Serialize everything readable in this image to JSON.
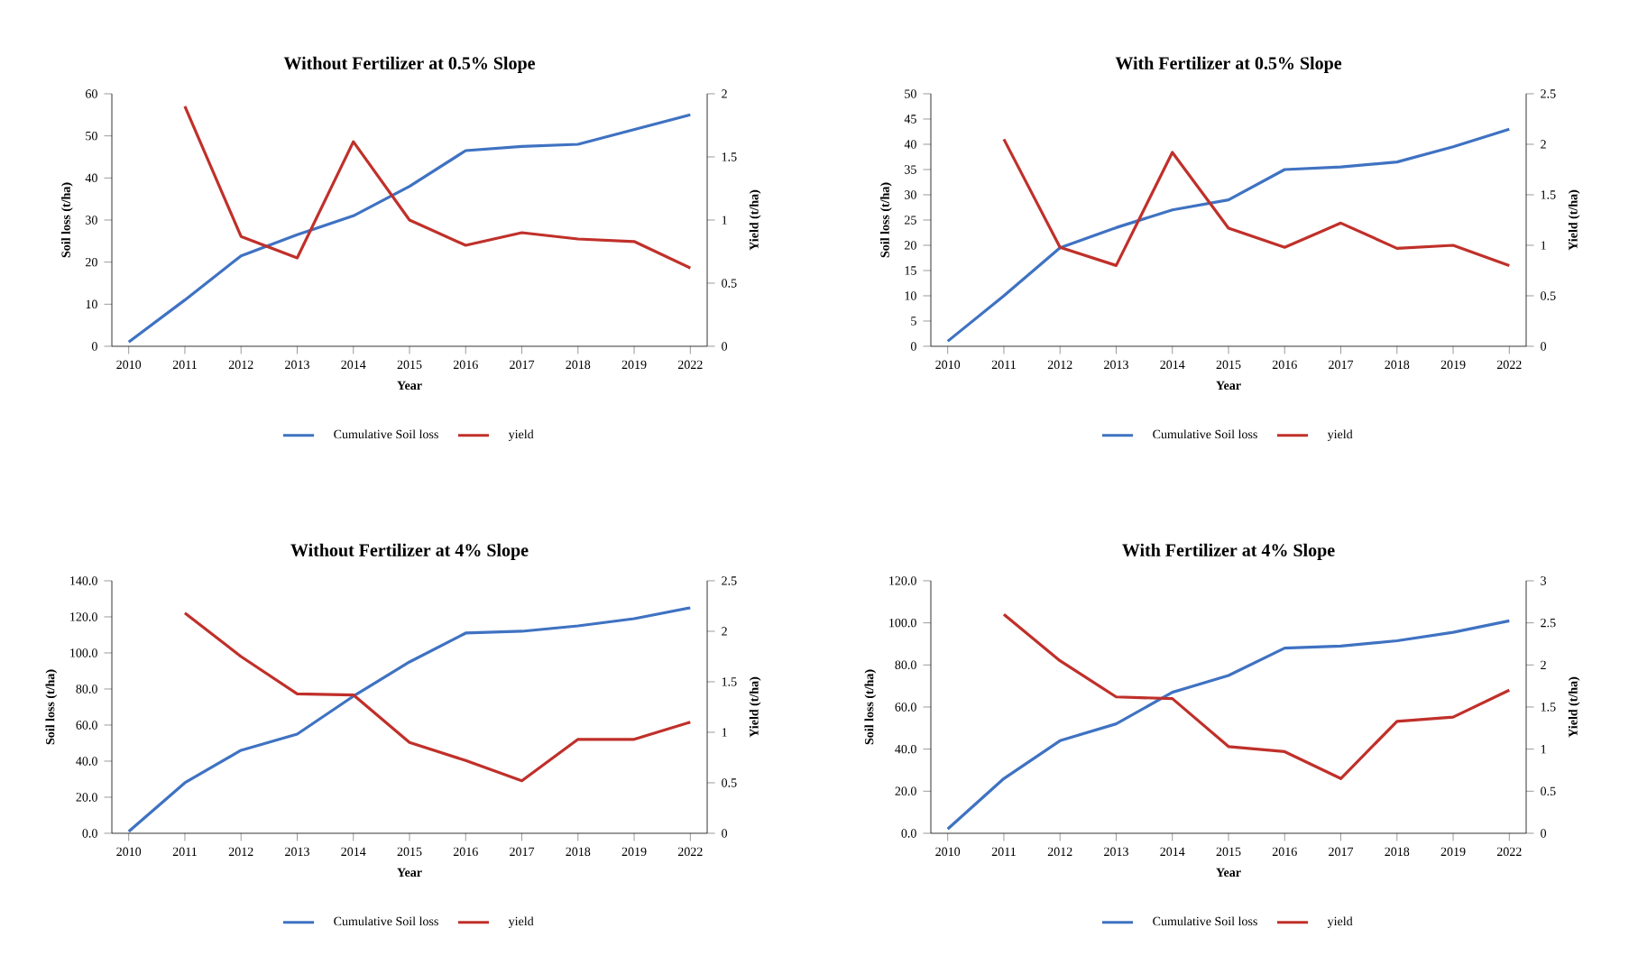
{
  "chart_data": [
    {
      "type": "line",
      "title": "Without Fertilizer at 0.5% Slope",
      "xlabel": "Year",
      "ylabel": "Soil loss (t/ha)",
      "y2label": "Yield (t/ha)",
      "legend": "bottom",
      "categories": [
        "2010",
        "2011",
        "2012",
        "2013",
        "2014",
        "2015",
        "2016",
        "2017",
        "2018",
        "2019",
        "2022"
      ],
      "ylim": [
        0,
        60
      ],
      "yticks": [
        0,
        10,
        20,
        30,
        40,
        50,
        60
      ],
      "y2lim": [
        0,
        2
      ],
      "y2ticks": [
        0,
        0.5,
        1,
        1.5,
        2
      ],
      "series": [
        {
          "name": "Cumulative Soil loss",
          "color": "#3f72c2",
          "values": [
            1,
            11,
            21.5,
            26.5,
            31,
            38,
            46.5,
            47.5,
            48,
            51.5,
            55
          ]
        },
        {
          "name": "yield",
          "color": "#c0302a",
          "axis": "y2",
          "values": [
            null,
            1.9,
            0.87,
            0.7,
            1.62,
            1.0,
            0.8,
            0.9,
            0.85,
            0.83,
            0.62
          ]
        }
      ]
    },
    {
      "type": "line",
      "title": "With Fertilizer at 0.5% Slope",
      "xlabel": "Year",
      "ylabel": "Soil loss (t/ha)",
      "y2label": "Yield (t/ha)",
      "legend": "bottom",
      "categories": [
        "2010",
        "2011",
        "2012",
        "2013",
        "2014",
        "2015",
        "2016",
        "2017",
        "2018",
        "2019",
        "2022"
      ],
      "ylim": [
        0,
        50
      ],
      "yticks": [
        0,
        5,
        10,
        15,
        20,
        25,
        30,
        35,
        40,
        45,
        50
      ],
      "y2lim": [
        0,
        2.5
      ],
      "y2ticks": [
        0,
        0.5,
        1,
        1.5,
        2,
        2.5
      ],
      "series": [
        {
          "name": "Cumulative Soil loss",
          "color": "#3f72c2",
          "values": [
            1,
            10,
            19.5,
            23.5,
            27,
            29,
            35,
            35.5,
            36.5,
            39.5,
            43
          ]
        },
        {
          "name": "yield",
          "color": "#c0302a",
          "axis": "y2",
          "values": [
            null,
            2.05,
            0.98,
            0.8,
            1.92,
            1.17,
            0.98,
            1.22,
            0.97,
            1.0,
            0.8
          ]
        }
      ]
    },
    {
      "type": "line",
      "title": "Without Fertilizer at 4% Slope",
      "xlabel": "Year",
      "ylabel": "Soil loss (t/ha)",
      "y2label": "Yield (t/ha)",
      "legend": "bottom",
      "categories": [
        "2010",
        "2011",
        "2012",
        "2013",
        "2014",
        "2015",
        "2016",
        "2017",
        "2018",
        "2019",
        "2022"
      ],
      "ylim": [
        0,
        140
      ],
      "yticks": [
        {
          "value": 0,
          "label": "0.0"
        },
        {
          "value": 20,
          "label": "20.0"
        },
        {
          "value": 40,
          "label": "40.0"
        },
        {
          "value": 60,
          "label": "60.0"
        },
        {
          "value": 80,
          "label": "80.0"
        },
        {
          "value": 100,
          "label": "100.0"
        },
        {
          "value": 120,
          "label": "120.0"
        },
        {
          "value": 140,
          "label": "140.0"
        }
      ],
      "y2lim": [
        0,
        2.5
      ],
      "y2ticks": [
        0,
        0.5,
        1,
        1.5,
        2,
        2.5
      ],
      "series": [
        {
          "name": "Cumulative Soil loss",
          "color": "#3f72c2",
          "values": [
            1,
            28,
            46,
            55,
            76,
            95,
            111,
            112,
            115,
            119,
            125
          ]
        },
        {
          "name": "yield",
          "color": "#c0302a",
          "axis": "y2",
          "values": [
            null,
            2.18,
            1.75,
            1.38,
            1.37,
            0.9,
            0.72,
            0.52,
            0.93,
            0.93,
            1.1
          ]
        }
      ]
    },
    {
      "type": "line",
      "title": "With Fertilizer at 4% Slope",
      "xlabel": "Year",
      "ylabel": "Soil loss (t/ha)",
      "y2label": "Yield (t/ha)",
      "legend": "bottom",
      "categories": [
        "2010",
        "2011",
        "2012",
        "2013",
        "2014",
        "2015",
        "2016",
        "2017",
        "2018",
        "2019",
        "2022"
      ],
      "ylim": [
        0,
        120
      ],
      "yticks": [
        {
          "value": 0,
          "label": "0.0"
        },
        {
          "value": 20,
          "label": "20.0"
        },
        {
          "value": 40,
          "label": "40.0"
        },
        {
          "value": 60,
          "label": "60.0"
        },
        {
          "value": 80,
          "label": "80.0"
        },
        {
          "value": 100,
          "label": "100.0"
        },
        {
          "value": 120,
          "label": "120.0"
        }
      ],
      "y2lim": [
        0,
        3
      ],
      "y2ticks": [
        0,
        0.5,
        1,
        1.5,
        2,
        2.5,
        3
      ],
      "series": [
        {
          "name": "Cumulative Soil loss",
          "color": "#3f72c2",
          "values": [
            2,
            26,
            44,
            52,
            67,
            75,
            88,
            89,
            91.5,
            95.5,
            101
          ]
        },
        {
          "name": "yield",
          "color": "#c0302a",
          "axis": "y2",
          "values": [
            null,
            2.6,
            2.05,
            1.62,
            1.6,
            1.03,
            0.97,
            0.65,
            1.33,
            1.38,
            1.7
          ]
        }
      ]
    }
  ]
}
